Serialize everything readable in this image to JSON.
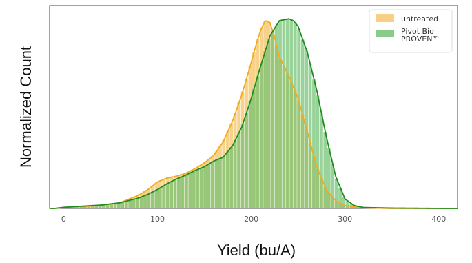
{
  "chart_data": {
    "type": "area",
    "xlabel": "Yield (bu/A)",
    "ylabel": "Normalized Count",
    "xlim": [
      -15,
      420
    ],
    "ylim": [
      0,
      1.07
    ],
    "xticks": [
      "0",
      "100",
      "200",
      "300",
      "400"
    ],
    "xtick_values": [
      0,
      100,
      200,
      300,
      400
    ],
    "grid": false,
    "legend_position": "top-right",
    "series": [
      {
        "name": "untreated",
        "color": "#f0aa1e",
        "fill": "#f6c870",
        "x": [
          -10,
          0,
          20,
          40,
          60,
          80,
          90,
          100,
          110,
          120,
          130,
          140,
          150,
          160,
          170,
          180,
          190,
          200,
          205,
          210,
          215,
          220,
          225,
          230,
          240,
          250,
          260,
          270,
          280,
          290,
          300,
          320,
          350,
          380,
          410
        ],
        "y": [
          0,
          0.004,
          0.01,
          0.016,
          0.03,
          0.07,
          0.1,
          0.14,
          0.16,
          0.17,
          0.185,
          0.21,
          0.24,
          0.28,
          0.35,
          0.46,
          0.6,
          0.77,
          0.86,
          0.94,
          0.99,
          0.98,
          0.9,
          0.8,
          0.7,
          0.58,
          0.4,
          0.22,
          0.1,
          0.04,
          0.015,
          0.003,
          0.0,
          0.0,
          0.0
        ]
      },
      {
        "name": "Pivot Bio PROVEN™",
        "color": "#1e8c1e",
        "fill": "#74c374",
        "x": [
          -10,
          0,
          20,
          40,
          60,
          80,
          90,
          100,
          110,
          120,
          130,
          140,
          150,
          160,
          170,
          180,
          190,
          200,
          210,
          220,
          230,
          240,
          245,
          250,
          260,
          270,
          280,
          290,
          300,
          310,
          320,
          350,
          380,
          410
        ],
        "y": [
          0,
          0.006,
          0.012,
          0.018,
          0.03,
          0.055,
          0.075,
          0.1,
          0.13,
          0.155,
          0.175,
          0.2,
          0.22,
          0.25,
          0.27,
          0.33,
          0.43,
          0.58,
          0.75,
          0.91,
          0.99,
          1.0,
          0.99,
          0.96,
          0.82,
          0.62,
          0.38,
          0.17,
          0.05,
          0.015,
          0.005,
          0.002,
          0.001,
          0.0
        ]
      }
    ]
  }
}
